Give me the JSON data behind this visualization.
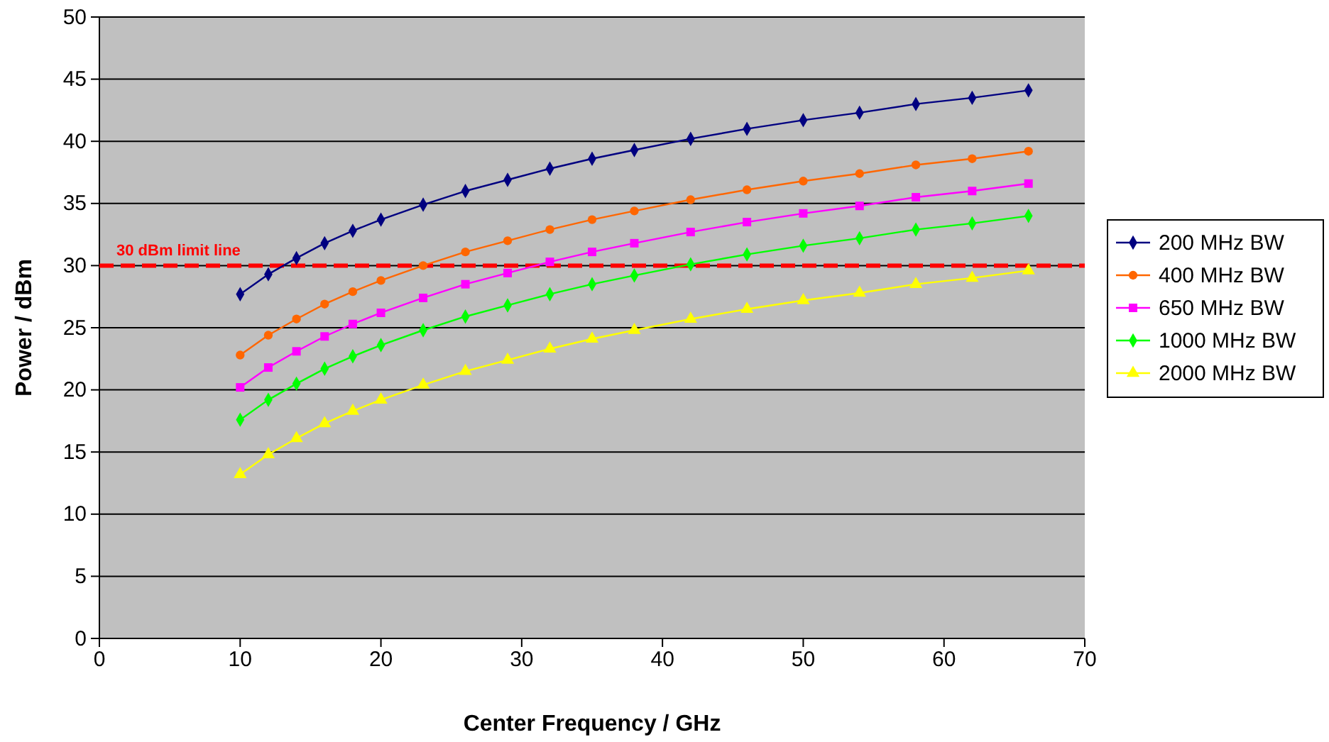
{
  "chart_data": {
    "type": "line",
    "xlabel": "Center Frequency / GHz",
    "ylabel": "Power / dBm",
    "x": [
      10,
      12,
      14,
      16,
      18,
      20,
      23,
      26,
      29,
      32,
      35,
      38,
      42,
      46,
      50,
      54,
      58,
      62,
      66
    ],
    "xlim": [
      0,
      70
    ],
    "xticks": [
      0,
      10,
      20,
      30,
      40,
      50,
      60,
      70
    ],
    "ylim": [
      0,
      50
    ],
    "yticks": [
      0,
      5,
      10,
      15,
      20,
      25,
      30,
      35,
      40,
      45,
      50
    ],
    "grid": "y",
    "legend": "right",
    "line_style": "solid",
    "series": [
      {
        "name": "200 MHz BW",
        "color": "#000080",
        "marker": "diamond",
        "values": [
          27.7,
          29.3,
          30.6,
          31.8,
          32.8,
          33.7,
          34.9,
          36.0,
          36.9,
          37.8,
          38.6,
          39.3,
          40.2,
          41.0,
          41.7,
          42.3,
          43.0,
          43.5,
          44.1
        ]
      },
      {
        "name": "400 MHz BW",
        "color": "#ff6600",
        "marker": "circle",
        "values": [
          22.8,
          24.4,
          25.7,
          26.9,
          27.9,
          28.8,
          30.0,
          31.1,
          32.0,
          32.9,
          33.7,
          34.4,
          35.3,
          36.1,
          36.8,
          37.4,
          38.1,
          38.6,
          39.2
        ]
      },
      {
        "name": "650 MHz BW",
        "color": "#ff00ff",
        "marker": "square",
        "values": [
          20.2,
          21.8,
          23.1,
          24.3,
          25.3,
          26.2,
          27.4,
          28.5,
          29.4,
          30.3,
          31.1,
          31.8,
          32.7,
          33.5,
          34.2,
          34.8,
          35.5,
          36.0,
          36.6
        ]
      },
      {
        "name": "1000 MHz BW",
        "color": "#00ff00",
        "marker": "diamond",
        "values": [
          17.6,
          19.2,
          20.5,
          21.7,
          22.7,
          23.6,
          24.8,
          25.9,
          26.8,
          27.7,
          28.5,
          29.2,
          30.1,
          30.9,
          31.6,
          32.2,
          32.9,
          33.4,
          34.0
        ]
      },
      {
        "name": "2000 MHz BW",
        "color": "#ffff00",
        "marker": "triangle",
        "values": [
          13.2,
          14.8,
          16.1,
          17.3,
          18.3,
          19.2,
          20.4,
          21.5,
          22.4,
          23.3,
          24.1,
          24.8,
          25.7,
          26.5,
          27.2,
          27.8,
          28.5,
          29.0,
          29.6
        ]
      }
    ],
    "ref_lines": [
      {
        "axis": "y",
        "value": 30,
        "label": "30 dBm limit line",
        "color": "#ff0000",
        "line_style": "dashed"
      }
    ]
  }
}
